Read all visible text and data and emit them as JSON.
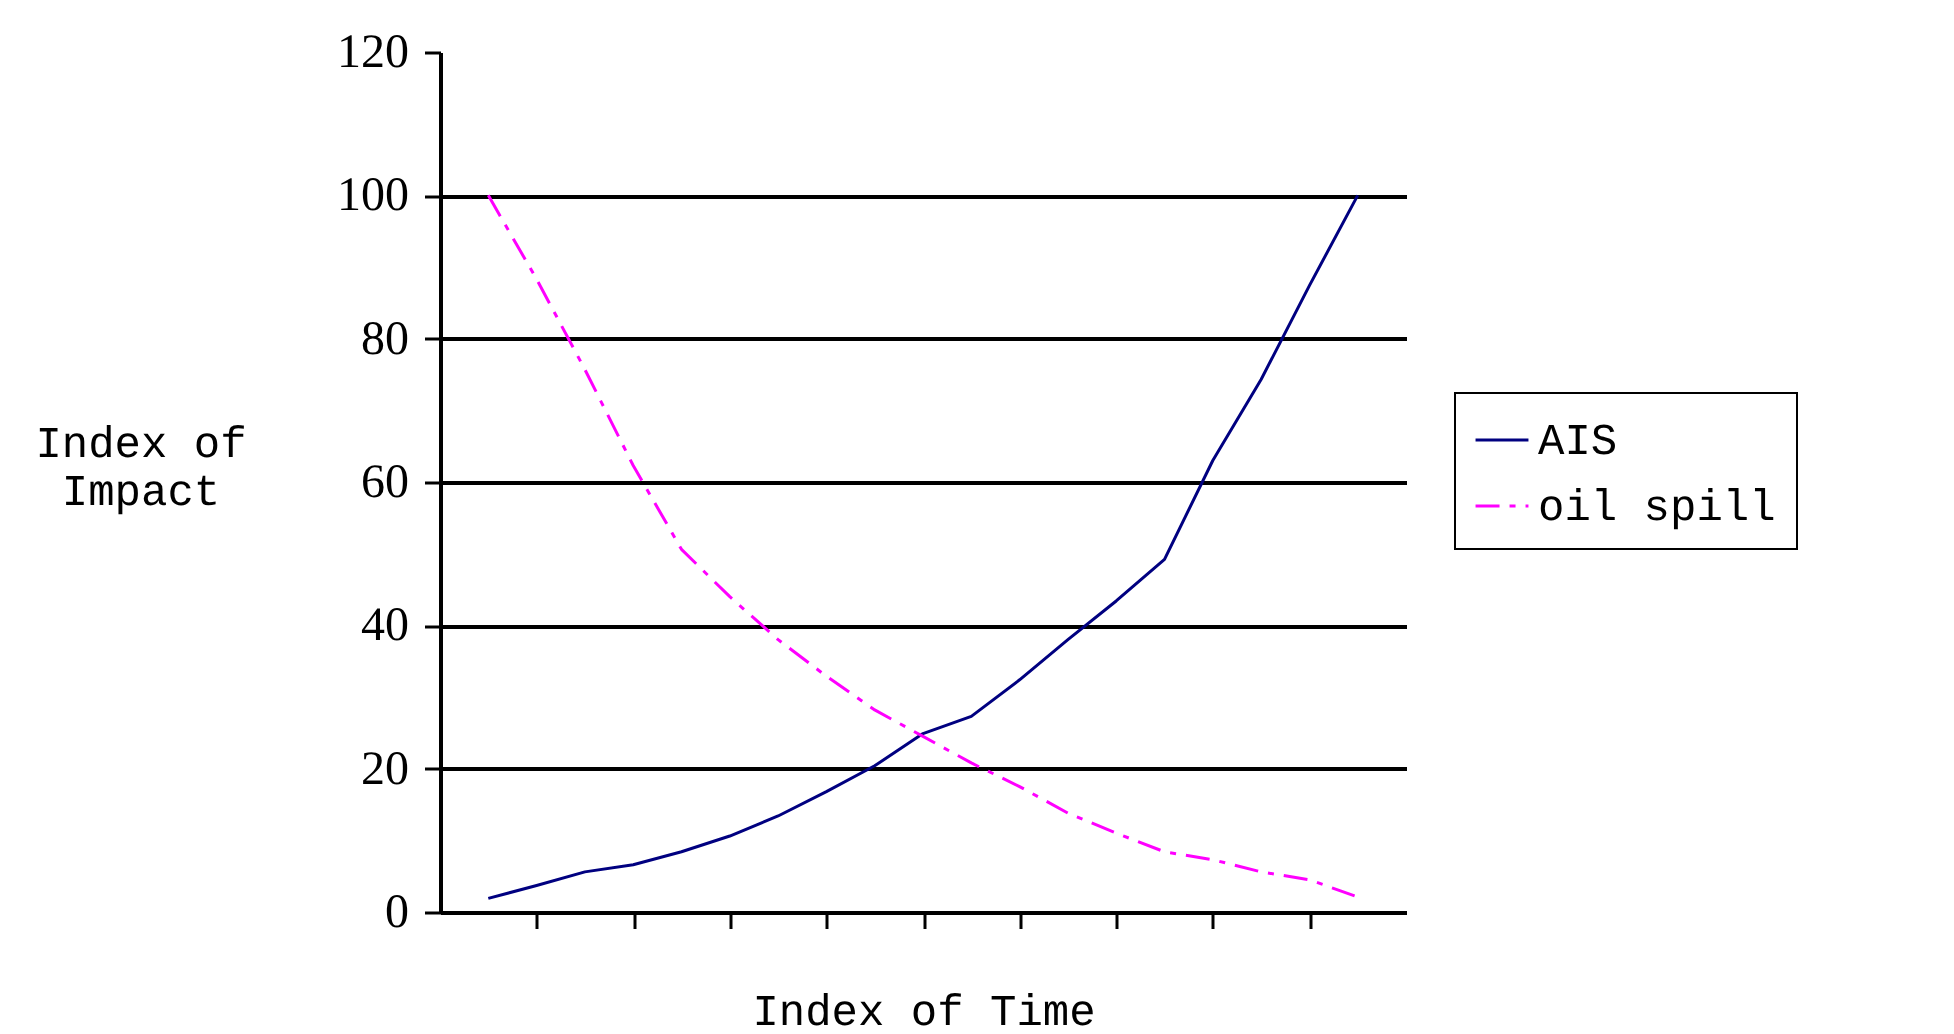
{
  "chart_data": {
    "type": "line",
    "xlabel": "Index of Time",
    "ylabel": "Index of Impact",
    "categories": [
      null,
      null,
      null,
      null,
      null,
      null,
      null,
      null,
      null,
      null,
      null,
      null,
      null,
      null,
      null,
      null,
      null,
      null,
      null
    ],
    "series": [
      {
        "name": "AIS",
        "color": "#000080",
        "line_style": "solid",
        "values": [
          1.9,
          3.7,
          5.6,
          6.6,
          8.4,
          10.6,
          13.4,
          16.8,
          20.4,
          24.9,
          27.3,
          32.4,
          38,
          43.4,
          49.2,
          63,
          74.3,
          87.4,
          100
        ]
      },
      {
        "name": "oil spill",
        "color": "#ff00ff",
        "line_style": "dashed",
        "values": [
          100,
          88.3,
          75.7,
          62.3,
          50.6,
          44,
          38,
          32.9,
          28.2,
          24.5,
          20.8,
          17.5,
          13.8,
          11,
          8.4,
          7.3,
          5.6,
          4.5,
          2.1
        ]
      }
    ],
    "ylim": [
      0,
      120
    ],
    "yticks": [
      0,
      20,
      40,
      60,
      80,
      100,
      120
    ],
    "tick_labels": "y",
    "grid": "y",
    "legend": "right",
    "marker": "none"
  }
}
